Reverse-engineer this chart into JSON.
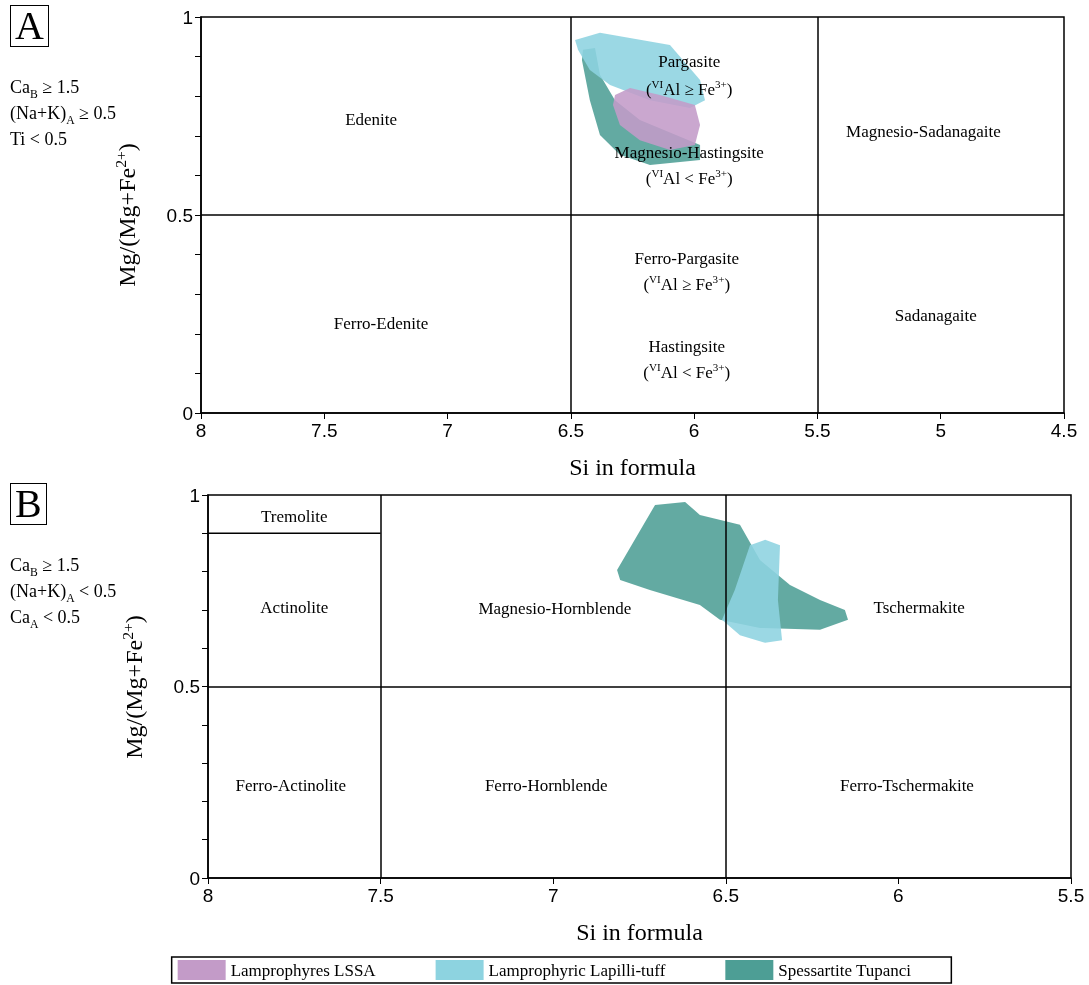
{
  "chart_data": [
    {
      "type": "area",
      "title": "A",
      "xlabel": "Si in formula",
      "ylabel": "Mg/(Mg+Fe$^{2+}$)",
      "xlim": [
        8,
        4.5
      ],
      "xticks": [
        8,
        7.5,
        7,
        6.5,
        6,
        5.5,
        5,
        4.5
      ],
      "ylim": [
        0,
        1
      ],
      "yticks": [
        0,
        {
          "value": 0.1,
          "label": null
        },
        {
          "value": 0.2,
          "label": null
        },
        {
          "value": 0.3,
          "label": null
        },
        {
          "value": 0.4,
          "label": null
        },
        0.5,
        {
          "value": 0.6,
          "label": null
        },
        {
          "value": 0.7,
          "label": null
        },
        {
          "value": 0.8,
          "label": null
        },
        {
          "value": 0.9,
          "label": null
        },
        1
      ],
      "legend": "bottom",
      "series": [
        {
          "name": "Spessartite Tupanci",
          "color": "#4d9e95",
          "x": [
            6.451,
            6.402,
            6.382,
            6.321,
            6.22,
            5.976,
            5.976,
            6.179,
            6.301,
            6.382,
            6.423,
            6.455
          ],
          "values": [
            0.917,
            0.922,
            0.854,
            0.79,
            0.74,
            0.677,
            0.639,
            0.626,
            0.652,
            0.702,
            0.79,
            0.891
          ]
        },
        {
          "name": "Lamprophyric Lapilli-tuff",
          "color": "#8dd3e0",
          "x": [
            6.483,
            6.382,
            6.098,
            5.976,
            5.956,
            6.017,
            6.179,
            6.341,
            6.423,
            6.471
          ],
          "values": [
            0.942,
            0.96,
            0.929,
            0.841,
            0.79,
            0.77,
            0.79,
            0.828,
            0.866,
            0.917
          ]
        },
        {
          "name": "Lamprophyres LSSA",
          "color": "#c39bc8",
          "x": [
            6.321,
            6.26,
            6.139,
            5.997,
            5.976,
            5.997,
            6.098,
            6.22,
            6.301,
            6.329
          ],
          "values": [
            0.803,
            0.821,
            0.803,
            0.778,
            0.727,
            0.677,
            0.664,
            0.689,
            0.727,
            0.778
          ]
        }
      ],
      "ref_lines": [
        {
          "axis": "x",
          "value": 6.5,
          "color": "#000000"
        },
        {
          "axis": "x",
          "value": 5.5,
          "color": "#000000"
        },
        {
          "axis": "y",
          "value": 0.5,
          "color": "#000000"
        }
      ],
      "annotations": [
        "Ca$_{B}$ ≥ 1.5",
        "(Na+K)$_{A}$ ≥ 0.5",
        "Ti < 0.5",
        "Edenite",
        "Pargasite",
        "($^{VI}$Al ≥ Fe$^{3+}$)",
        "Magnesio-Hastingsite",
        "($^{VI}$Al < Fe$^{3+}$)",
        "Magnesio-Sadanagaite",
        "Ferro-Edenite",
        "Ferro-Pargasite",
        "($^{VI}$Al ≥ Fe$^{3+}$)",
        "Hastingsite",
        "($^{VI}$Al < Fe$^{3+}$)",
        "Sadanagaite"
      ]
    },
    {
      "type": "area",
      "title": "B",
      "xlabel": "Si in formula",
      "ylabel": "Mg/(Mg+Fe$^{2+}$)",
      "xlim": [
        8,
        5.5
      ],
      "xticks": [
        8,
        7.5,
        7,
        6.5,
        6,
        5.5
      ],
      "ylim": [
        0,
        1
      ],
      "yticks": [
        0,
        {
          "value": 0.1,
          "label": null
        },
        {
          "value": 0.2,
          "label": null
        },
        {
          "value": 0.3,
          "label": null
        },
        {
          "value": 0.4,
          "label": null
        },
        0.5,
        {
          "value": 0.6,
          "label": null
        },
        {
          "value": 0.7,
          "label": null
        },
        {
          "value": 0.8,
          "label": null
        },
        {
          "value": 0.9,
          "label": null
        },
        1
      ],
      "series": [
        {
          "color": "#4d9e95",
          "x": [
            6.815,
            6.705,
            6.618,
            6.575,
            6.459,
            6.401,
            6.314,
            6.227,
            6.155,
            6.146,
            6.227,
            6.401,
            6.517,
            6.575,
            6.72,
            6.806
          ],
          "values": [
            0.804,
            0.974,
            0.982,
            0.948,
            0.922,
            0.83,
            0.765,
            0.726,
            0.7,
            0.674,
            0.648,
            0.653,
            0.674,
            0.713,
            0.752,
            0.778
          ]
        },
        {
          "color": "#8dd3e0",
          "x": [
            6.43,
            6.386,
            6.343,
            6.349,
            6.337,
            6.386,
            6.459,
            6.511,
            6.474
          ],
          "values": [
            0.869,
            0.883,
            0.869,
            0.726,
            0.621,
            0.614,
            0.634,
            0.674,
            0.752
          ]
        },
        {
          "type": "line",
          "color": "#000000",
          "x": [
            8,
            7.5
          ],
          "values": [
            0.9,
            0.9
          ]
        }
      ],
      "ref_lines": [
        {
          "axis": "x",
          "value": 7.5,
          "color": "#000000"
        },
        {
          "axis": "x",
          "value": 6.5,
          "color": "#000000"
        },
        {
          "axis": "y",
          "value": 0.5,
          "color": "#000000"
        }
      ],
      "annotations": [
        "Ca$_{B}$ ≥ 1.5",
        "(Na+K)$_{A}$ < 0.5",
        "Ca$_{A}$ < 0.5",
        "Tremolite",
        "Actinolite",
        "Magnesio-Hornblende",
        "Tschermakite",
        "Ferro-Actinolite",
        "Ferro-Hornblende",
        "Ferro-Tschermakite"
      ]
    }
  ]
}
